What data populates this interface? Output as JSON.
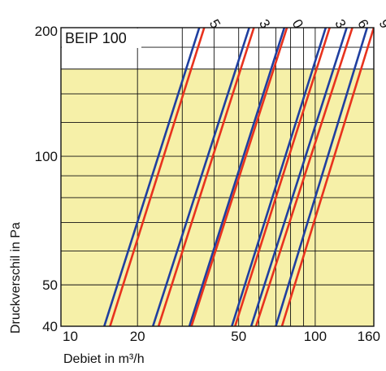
{
  "chart_data": {
    "type": "line",
    "title": "BEIP 100",
    "xlabel": "Debiet in m³/h",
    "ylabel": "Druckverschil in Pa",
    "x_scale": "log",
    "y_scale": "log",
    "xlim": [
      10,
      170
    ],
    "ylim": [
      40,
      200
    ],
    "x_ticks": [
      10,
      20,
      50,
      100,
      160
    ],
    "x_tick_labels": [
      "10",
      "20",
      "50",
      "100",
      "160"
    ],
    "y_ticks": [
      40,
      50,
      100,
      200
    ],
    "y_tick_labels": [
      "40",
      "50",
      "100",
      "200"
    ],
    "position_labels": [
      "5",
      "3",
      "0",
      "3",
      "6",
      "9"
    ],
    "background_band": {
      "y_from": 40,
      "y_to": 160,
      "color": "#f6f0a8"
    },
    "colors": {
      "blue": "#1f3fa0",
      "red": "#e8321e",
      "grid": "#111111",
      "band": "#f6f0a8"
    },
    "series": [
      {
        "color": "blue",
        "points": [
          [
            14.8,
            40
          ],
          [
            35.0,
            200
          ]
        ]
      },
      {
        "color": "red",
        "points": [
          [
            15.6,
            40
          ],
          [
            36.6,
            200
          ]
        ]
      },
      {
        "color": "blue",
        "points": [
          [
            23.0,
            40
          ],
          [
            55.0,
            200
          ]
        ]
      },
      {
        "color": "red",
        "points": [
          [
            24.2,
            40
          ],
          [
            57.4,
            200
          ]
        ]
      },
      {
        "color": "blue",
        "points": [
          [
            32.0,
            40
          ],
          [
            75.6,
            200
          ]
        ]
      },
      {
        "color": "red",
        "points": [
          [
            32.6,
            40
          ],
          [
            77.4,
            200
          ]
        ]
      },
      {
        "color": "blue",
        "points": [
          [
            47.0,
            40
          ],
          [
            110.0,
            200
          ]
        ]
      },
      {
        "color": "red",
        "points": [
          [
            48.4,
            40
          ],
          [
            114.0,
            200
          ]
        ]
      },
      {
        "color": "blue",
        "points": [
          [
            56.0,
            40
          ],
          [
            133.0,
            200
          ]
        ]
      },
      {
        "color": "red",
        "points": [
          [
            58.5,
            40
          ],
          [
            140.0,
            200
          ]
        ]
      },
      {
        "color": "blue",
        "points": [
          [
            70.0,
            40
          ],
          [
            160.0,
            200
          ]
        ]
      },
      {
        "color": "red",
        "points": [
          [
            74.0,
            40
          ],
          [
            170.0,
            200
          ]
        ]
      }
    ]
  }
}
